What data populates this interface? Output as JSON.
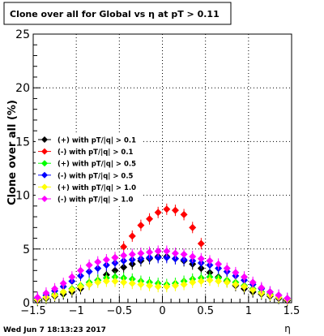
{
  "chart_data": {
    "type": "scatter",
    "title": "Clone  over all for Global vs   η at pT > 0.11",
    "xlabel": "η",
    "ylabel": "Clone  over all (%)",
    "xlim": [
      -1.5,
      1.5
    ],
    "ylim": [
      0,
      25
    ],
    "xticks": [
      "−1.5",
      "−1",
      "−0.5",
      "0",
      "0.5",
      "1",
      "1.5"
    ],
    "yticks": [
      "0",
      "5",
      "10",
      "15",
      "20",
      "25"
    ],
    "grid": true,
    "legend_position": "middle-left",
    "footer": "Wed Jun  7 18:13:23 2017",
    "series": [
      {
        "name": "(+) with pT/|q| > 0.1",
        "color": "#000000",
        "x": [
          -1.45,
          -1.35,
          -1.25,
          -1.15,
          -1.05,
          -0.95,
          -0.85,
          -0.75,
          -0.65,
          -0.55,
          -0.45,
          -0.35,
          -0.25,
          -0.15,
          -0.05,
          0.05,
          0.15,
          0.25,
          0.35,
          0.45,
          0.55,
          0.65,
          0.75,
          0.85,
          0.95,
          1.05,
          1.15,
          1.25,
          1.35,
          1.45
        ],
        "y": [
          0.2,
          0.4,
          0.6,
          0.8,
          1.0,
          1.3,
          1.7,
          2.1,
          2.6,
          3.0,
          3.3,
          3.6,
          3.9,
          4.1,
          4.3,
          4.3,
          4.1,
          3.9,
          3.6,
          3.2,
          2.8,
          2.4,
          2.0,
          1.6,
          1.3,
          1.0,
          0.8,
          0.6,
          0.4,
          0.2
        ]
      },
      {
        "name": "(-) with pT/|q| > 0.1",
        "color": "#ff0000",
        "x": [
          -0.55,
          -0.45,
          -0.35,
          -0.25,
          -0.15,
          -0.05,
          0.05,
          0.15,
          0.25,
          0.35,
          0.45
        ],
        "y": [
          4.2,
          5.2,
          6.2,
          7.2,
          7.8,
          8.4,
          8.7,
          8.6,
          8.2,
          7.0,
          5.5
        ]
      },
      {
        "name": "(+) with pT/|q| > 0.5",
        "color": "#00ff00",
        "x": [
          -1.45,
          -1.35,
          -1.25,
          -1.15,
          -1.05,
          -0.95,
          -0.85,
          -0.75,
          -0.65,
          -0.55,
          -0.45,
          -0.35,
          -0.25,
          -0.15,
          -0.05,
          0.05,
          0.15,
          0.25,
          0.35,
          0.45,
          0.55,
          0.65,
          0.75,
          0.85,
          0.95,
          1.05,
          1.15,
          1.25,
          1.35,
          1.45
        ],
        "y": [
          0.3,
          0.5,
          0.8,
          1.0,
          1.3,
          1.6,
          1.9,
          2.1,
          2.3,
          2.4,
          2.3,
          2.2,
          2.0,
          1.9,
          1.8,
          1.7,
          1.8,
          2.0,
          2.2,
          2.3,
          2.4,
          2.3,
          2.1,
          1.9,
          1.6,
          1.3,
          1.0,
          0.8,
          0.5,
          0.3
        ]
      },
      {
        "name": "(-) with pT/|q| > 0.5",
        "color": "#0000ff",
        "x": [
          -1.45,
          -1.35,
          -1.25,
          -1.15,
          -1.05,
          -0.95,
          -0.85,
          -0.75,
          -0.65,
          -0.55,
          -0.45,
          -0.35,
          -0.25,
          -0.15,
          -0.05,
          0.05,
          0.15,
          0.25,
          0.35,
          0.45,
          0.55,
          0.65,
          0.75,
          0.85,
          0.95,
          1.05,
          1.15,
          1.25,
          1.35,
          1.45
        ],
        "y": [
          0.4,
          0.7,
          1.1,
          1.5,
          2.0,
          2.5,
          2.9,
          3.2,
          3.5,
          3.7,
          3.9,
          4.0,
          4.1,
          4.2,
          4.2,
          4.2,
          4.1,
          4.0,
          3.9,
          3.7,
          3.5,
          3.2,
          2.9,
          2.5,
          2.1,
          1.7,
          1.3,
          1.0,
          0.7,
          0.4
        ]
      },
      {
        "name": "(+) with pT/|q| > 1.0",
        "color": "#ffff00",
        "x": [
          -1.45,
          -1.35,
          -1.25,
          -1.15,
          -1.05,
          -0.95,
          -0.85,
          -0.75,
          -0.65,
          -0.55,
          -0.45,
          -0.35,
          -0.25,
          -0.15,
          -0.05,
          0.05,
          0.15,
          0.25,
          0.35,
          0.45,
          0.55,
          0.65,
          0.75,
          0.85,
          0.95,
          1.05,
          1.15,
          1.25,
          1.35,
          1.45
        ],
        "y": [
          0.3,
          0.5,
          0.7,
          1.0,
          1.2,
          1.5,
          1.7,
          1.9,
          2.0,
          2.0,
          1.9,
          1.8,
          1.7,
          1.6,
          1.5,
          1.5,
          1.6,
          1.7,
          1.9,
          2.0,
          2.1,
          2.0,
          1.9,
          1.7,
          1.5,
          1.2,
          0.9,
          0.7,
          0.5,
          0.3
        ]
      },
      {
        "name": "(-) with pT/|q| > 1.0",
        "color": "#ff00ff",
        "x": [
          -1.45,
          -1.35,
          -1.25,
          -1.15,
          -1.05,
          -0.95,
          -0.85,
          -0.75,
          -0.65,
          -0.55,
          -0.45,
          -0.35,
          -0.25,
          -0.15,
          -0.05,
          0.05,
          0.15,
          0.25,
          0.35,
          0.45,
          0.55,
          0.65,
          0.75,
          0.85,
          0.95,
          1.05,
          1.15,
          1.25,
          1.35,
          1.45
        ],
        "y": [
          0.5,
          0.9,
          1.3,
          1.8,
          2.4,
          3.0,
          3.5,
          3.8,
          4.0,
          4.2,
          4.4,
          4.5,
          4.6,
          4.7,
          4.8,
          4.8,
          4.6,
          4.5,
          4.3,
          4.1,
          3.9,
          3.6,
          3.2,
          2.8,
          2.4,
          1.9,
          1.4,
          1.0,
          0.7,
          0.4
        ]
      }
    ]
  }
}
